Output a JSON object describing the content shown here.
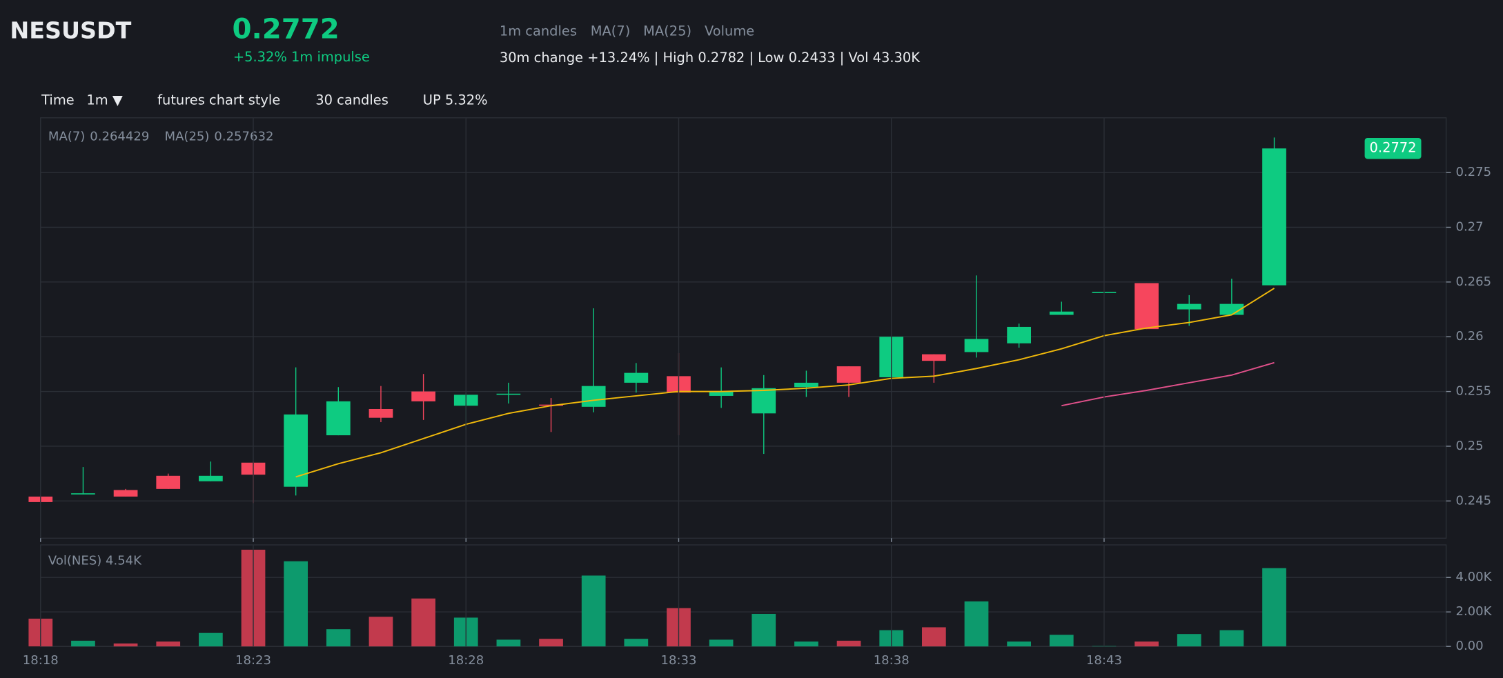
{
  "header": {
    "symbol": "NESUSDT",
    "price": "0.2772",
    "change": "+5.32% 1m impulse",
    "indicators": [
      "1m candles",
      "MA(7)",
      "MA(25)",
      "Volume"
    ],
    "stats": "30m change +13.24% | High 0.2782 | Low 0.2433 | Vol 43.30K"
  },
  "toolbar": {
    "time_label": "Time",
    "interval": "1m ▼",
    "style": "futures chart style",
    "count": "30 candles",
    "direction": "UP 5.32%"
  },
  "chart_data": [
    {
      "type": "candlestick",
      "up_color": "#0ecb81",
      "down_color": "#f6465d",
      "open": [
        0.2454,
        0.2456,
        0.246,
        0.2473,
        0.2468,
        0.2485,
        0.2463,
        0.251,
        0.2534,
        0.255,
        0.2537,
        0.2547,
        0.2538,
        0.2536,
        0.2558,
        0.2564,
        0.2546,
        0.253,
        0.2554,
        0.2573,
        0.2563,
        0.2584,
        0.2586,
        0.2594,
        0.262,
        0.264,
        0.2649,
        0.2625,
        0.262,
        0.2647
      ],
      "high": [
        0.2455,
        0.2481,
        0.2461,
        0.2475,
        0.2486,
        0.2486,
        0.2572,
        0.2554,
        0.2555,
        0.2566,
        0.2549,
        0.2558,
        0.2544,
        0.2626,
        0.2576,
        0.2585,
        0.2572,
        0.2565,
        0.2569,
        0.2573,
        0.26,
        0.2584,
        0.2656,
        0.2612,
        0.2632,
        0.2641,
        0.2649,
        0.2638,
        0.2653,
        0.2782
      ],
      "low": [
        0.2448,
        0.2456,
        0.2454,
        0.2461,
        0.2468,
        0.2448,
        0.2455,
        0.251,
        0.2522,
        0.2524,
        0.2515,
        0.2539,
        0.2513,
        0.2531,
        0.2549,
        0.251,
        0.2535,
        0.2493,
        0.2545,
        0.2545,
        0.2563,
        0.2558,
        0.2581,
        0.259,
        0.262,
        0.264,
        0.2607,
        0.261,
        0.262,
        0.2647
      ],
      "close": [
        0.2449,
        0.2457,
        0.2454,
        0.2461,
        0.2473,
        0.2474,
        0.2529,
        0.2541,
        0.2526,
        0.2541,
        0.2547,
        0.2548,
        0.2537,
        0.2555,
        0.2567,
        0.2549,
        0.255,
        0.2553,
        0.2558,
        0.2558,
        0.26,
        0.2578,
        0.2598,
        0.2609,
        0.2623,
        0.2641,
        0.2607,
        0.263,
        0.263,
        0.2772
      ],
      "series": [
        {
          "name": "MA(7)",
          "color": "#f0b90b",
          "legend_value": 0.264429,
          "values": [
            null,
            null,
            null,
            null,
            null,
            null,
            0.2472,
            0.2484,
            0.2494,
            0.2507,
            0.252,
            0.253,
            0.2537,
            0.2542,
            0.2546,
            0.255,
            0.255,
            0.2551,
            0.2553,
            0.2556,
            0.2562,
            0.2564,
            0.2571,
            0.2579,
            0.2589,
            0.2601,
            0.2608,
            0.2613,
            0.262,
            0.264429
          ]
        },
        {
          "name": "MA(25)",
          "color": "#e0508a",
          "legend_value": 0.257632,
          "values": [
            null,
            null,
            null,
            null,
            null,
            null,
            null,
            null,
            null,
            null,
            null,
            null,
            null,
            null,
            null,
            null,
            null,
            null,
            null,
            null,
            null,
            null,
            null,
            null,
            0.2537,
            0.2545,
            0.2551,
            0.2558,
            0.2565,
            0.257632
          ]
        }
      ],
      "price_tag": 0.2772,
      "ylim": [
        0.2416,
        0.28
      ],
      "yticks": [
        0.245,
        0.25,
        0.255,
        0.26,
        0.265,
        0.27,
        0.275
      ],
      "grid": true
    },
    {
      "type": "bar",
      "title": "Vol(NES) 4.54K",
      "up_color": "#0d9a6d",
      "down_color": "#c23a4d",
      "categories": [
        "18:18",
        null,
        null,
        null,
        null,
        "18:23",
        null,
        null,
        null,
        null,
        "18:28",
        null,
        null,
        null,
        null,
        "18:33",
        null,
        null,
        null,
        null,
        "18:38",
        null,
        null,
        null,
        null,
        "18:43",
        null,
        null,
        null,
        null
      ],
      "values": [
        1610,
        330,
        170,
        280,
        780,
        5610,
        4940,
        1000,
        1720,
        2780,
        1670,
        390,
        440,
        4110,
        440,
        2220,
        390,
        1890,
        280,
        330,
        940,
        1110,
        2610,
        280,
        670,
        20,
        280,
        720,
        940,
        4540
      ],
      "ylim": [
        0,
        5890
      ],
      "yticks": [
        {
          "value": 0,
          "label": "0.00"
        },
        {
          "value": 2000,
          "label": "2.00K"
        },
        {
          "value": 4000,
          "label": "4.00K"
        }
      ],
      "grid": true
    }
  ]
}
